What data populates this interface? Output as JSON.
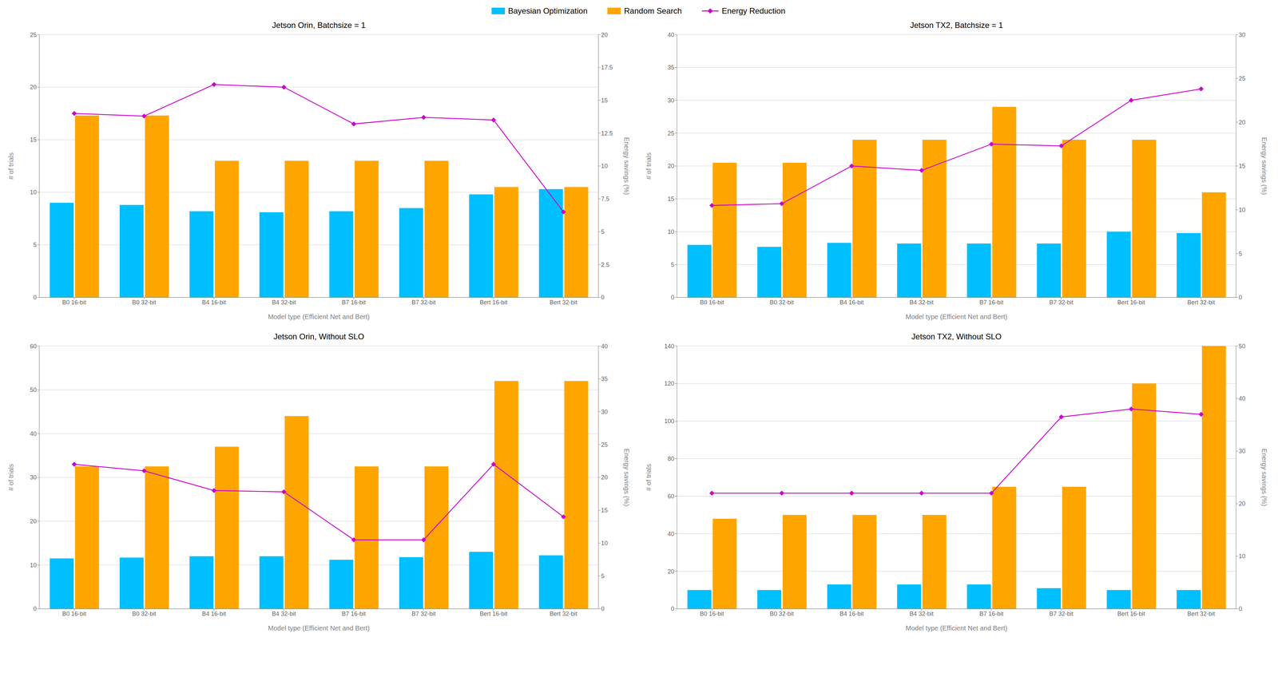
{
  "chart_data": [
    {
      "type": "bar",
      "title": "Jetson Orin, Batchsize = 1",
      "categories": [
        "B0 16-bit",
        "B0 32-bit",
        "B4 16-bit",
        "B4 32-bit",
        "B7 16-bit",
        "B7 32-bit",
        "Bert 16-bit",
        "Bert 32-bit"
      ],
      "xlabel": "Model type (Efficient Net and Bert)",
      "ylabel": "# of trials",
      "y2label": "Energy savings (%)",
      "series": [
        {
          "name": "Bayesian Optimization",
          "type": "bar",
          "color": "#00BFFF",
          "values": [
            9.0,
            8.8,
            8.2,
            8.1,
            8.2,
            8.5,
            9.8,
            10.3
          ]
        },
        {
          "name": "Random Search",
          "type": "bar",
          "color": "#FFA500",
          "values": [
            17.3,
            17.3,
            13.0,
            13.0,
            13.0,
            13.0,
            10.5,
            10.5
          ]
        },
        {
          "name": "Energy Reduction",
          "type": "line",
          "axis": "y2",
          "marker": "diamond",
          "color": "#CC00CC",
          "values": [
            14.0,
            13.8,
            16.2,
            16.0,
            13.2,
            13.7,
            13.5,
            6.5
          ]
        }
      ],
      "ylim": [
        0,
        25
      ],
      "yticks": [
        0,
        5,
        10,
        15,
        20,
        25
      ],
      "y2lim": [
        0,
        20
      ],
      "y2ticks": [
        0,
        2.5,
        5,
        7.5,
        10,
        12.5,
        15,
        17.5,
        20
      ],
      "grid": true,
      "legend": "top"
    },
    {
      "type": "bar",
      "title": "Jetson TX2, Batchsize = 1",
      "categories": [
        "B0 16-bit",
        "B0 32-bit",
        "B4 16-bit",
        "B4 32-bit",
        "B7 16-bit",
        "B7 32-bit",
        "Bert 16-bit",
        "Bert 32-bit"
      ],
      "xlabel": "Model type (Efficient Net and Bert)",
      "ylabel": "# of trials",
      "y2label": "Energy savings (%)",
      "series": [
        {
          "name": "Bayesian Optimization",
          "type": "bar",
          "color": "#00BFFF",
          "values": [
            8.0,
            7.7,
            8.3,
            8.2,
            8.2,
            8.2,
            10.0,
            9.8
          ]
        },
        {
          "name": "Random Search",
          "type": "bar",
          "color": "#FFA500",
          "values": [
            20.5,
            20.5,
            24.0,
            24.0,
            29.0,
            24.0,
            24.0,
            16.0
          ]
        },
        {
          "name": "Energy Reduction",
          "type": "line",
          "axis": "y2",
          "marker": "diamond",
          "color": "#CC00CC",
          "values": [
            10.5,
            10.7,
            15.0,
            14.5,
            17.5,
            17.3,
            22.5,
            23.8
          ]
        }
      ],
      "ylim": [
        0,
        40
      ],
      "yticks": [
        0,
        5,
        10,
        15,
        20,
        25,
        30,
        35,
        40
      ],
      "y2lim": [
        0,
        30
      ],
      "y2ticks": [
        0,
        5,
        10,
        15,
        20,
        25,
        30
      ],
      "grid": true
    },
    {
      "type": "bar",
      "title": "Jetson Orin, Without SLO",
      "categories": [
        "B0 16-bit",
        "B0 32-bit",
        "B4 16-bit",
        "B4 32-bit",
        "B7 16-bit",
        "B7 32-bit",
        "Bert 16-bit",
        "Bert 32-bit"
      ],
      "xlabel": "Model type (Efficient Net and Bert)",
      "ylabel": "# of trials",
      "y2label": "Energy savings (%)",
      "series": [
        {
          "name": "Bayesian Optimization",
          "type": "bar",
          "color": "#00BFFF",
          "values": [
            11.5,
            11.7,
            12.0,
            12.0,
            11.2,
            11.8,
            13.0,
            12.2
          ]
        },
        {
          "name": "Random Search",
          "type": "bar",
          "color": "#FFA500",
          "values": [
            32.5,
            32.5,
            37.0,
            44.0,
            32.5,
            32.5,
            52.0,
            52.0
          ]
        },
        {
          "name": "Energy Reduction",
          "type": "line",
          "axis": "y2",
          "marker": "diamond",
          "color": "#CC00CC",
          "values": [
            22.0,
            21.0,
            18.0,
            17.8,
            10.5,
            10.5,
            22.0,
            14.0
          ]
        }
      ],
      "ylim": [
        0,
        60
      ],
      "yticks": [
        0,
        10,
        20,
        30,
        40,
        50,
        60
      ],
      "y2lim": [
        0,
        40
      ],
      "y2ticks": [
        0,
        5,
        10,
        15,
        20,
        25,
        30,
        35,
        40
      ],
      "grid": true
    },
    {
      "type": "bar",
      "title": "Jetson TX2, Without SLO",
      "categories": [
        "B0 16-bit",
        "B0 32-bit",
        "B4 16-bit",
        "B4 32-bit",
        "B7 16-bit",
        "B7 32-bit",
        "Bert 16-bit",
        "Bert 32-bit"
      ],
      "xlabel": "Model type (Efficient Net and Bert)",
      "ylabel": "# of trials",
      "y2label": "Energy savings (%)",
      "series": [
        {
          "name": "Bayesian Optimization",
          "type": "bar",
          "color": "#00BFFF",
          "values": [
            10.0,
            10.0,
            13.0,
            13.0,
            13.0,
            11.0,
            10.0,
            10.0
          ]
        },
        {
          "name": "Random Search",
          "type": "bar",
          "color": "#FFA500",
          "values": [
            48.0,
            50.0,
            50.0,
            50.0,
            65.0,
            65.0,
            120.0,
            140.0
          ]
        },
        {
          "name": "Energy Reduction",
          "type": "line",
          "axis": "y2",
          "marker": "diamond",
          "color": "#CC00CC",
          "values": [
            22.0,
            22.0,
            22.0,
            22.0,
            22.0,
            36.5,
            38.0,
            37.0
          ]
        }
      ],
      "ylim": [
        0,
        140
      ],
      "yticks": [
        0,
        20,
        40,
        60,
        80,
        100,
        120,
        140
      ],
      "y2lim": [
        0,
        50
      ],
      "y2ticks": [
        0,
        10,
        20,
        30,
        40,
        50
      ],
      "grid": true
    }
  ]
}
